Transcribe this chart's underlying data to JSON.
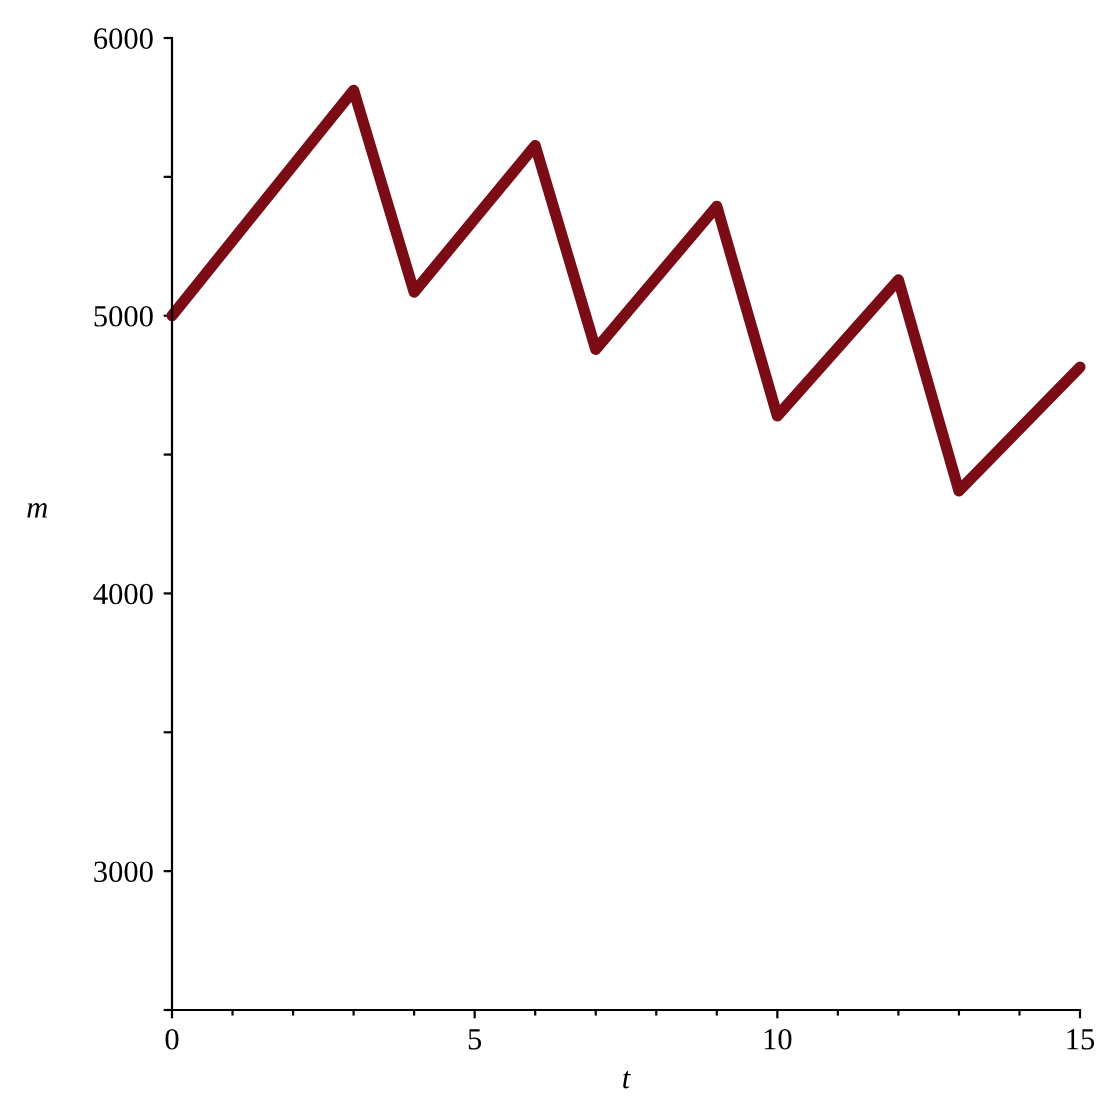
{
  "chart_data": {
    "type": "line",
    "xlabel": "t",
    "ylabel": "m",
    "x": [
      0,
      3,
      4,
      6,
      7,
      9,
      10,
      12,
      13,
      15
    ],
    "series": [
      {
        "color": "#7b0c16",
        "values": [
          5000,
          5812,
          5085,
          5613,
          4879,
          5394,
          4639,
          5129,
          4369,
          4815
        ]
      }
    ],
    "xlim": [
      0,
      15
    ],
    "ylim": [
      2500,
      6000
    ],
    "xticks": [
      0,
      {
        "value": 1,
        "label": null
      },
      {
        "value": 2,
        "label": null
      },
      {
        "value": 3,
        "label": null
      },
      {
        "value": 4,
        "label": null
      },
      5,
      {
        "value": 6,
        "label": null
      },
      {
        "value": 7,
        "label": null
      },
      {
        "value": 8,
        "label": null
      },
      {
        "value": 9,
        "label": null
      },
      10,
      {
        "value": 11,
        "label": null
      },
      {
        "value": 12,
        "label": null
      },
      {
        "value": 13,
        "label": null
      },
      {
        "value": 14,
        "label": null
      },
      15
    ],
    "yticks": [
      {
        "value": 2500,
        "label": null
      },
      3000,
      {
        "value": 3500,
        "label": null
      },
      4000,
      {
        "value": 4500,
        "label": null
      },
      5000,
      {
        "value": 5500,
        "label": null
      },
      6000
    ],
    "grid": false,
    "legend": false,
    "marker": "none",
    "line_style": "solid"
  }
}
